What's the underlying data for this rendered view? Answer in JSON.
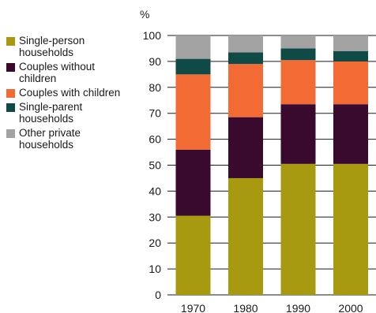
{
  "chart_data": {
    "type": "bar",
    "stacked": true,
    "orientation": "vertical",
    "ylabel": "%",
    "xlabel": "",
    "ylim": [
      0,
      100
    ],
    "yticks": [
      0,
      10,
      20,
      30,
      40,
      50,
      60,
      70,
      80,
      90,
      100
    ],
    "grid": true,
    "legend_position": "left",
    "categories": [
      "1970",
      "1980",
      "1990",
      "2000"
    ],
    "series": [
      {
        "name": "Single-person households",
        "color": "#a89a10",
        "values": [
          30.5,
          45,
          50.5,
          50.5
        ]
      },
      {
        "name": "Couples without children",
        "color": "#3a0a2e",
        "values": [
          25.5,
          23.5,
          23,
          23
        ]
      },
      {
        "name": "Couples with children",
        "color": "#f26b35",
        "values": [
          29,
          20.5,
          17,
          16.5
        ]
      },
      {
        "name": "Single-parent households",
        "color": "#0f4a47",
        "values": [
          6,
          4.5,
          4.5,
          4
        ]
      },
      {
        "name": "Other private households",
        "color": "#a3a3a3",
        "values": [
          9,
          6.5,
          5,
          6
        ]
      }
    ]
  }
}
